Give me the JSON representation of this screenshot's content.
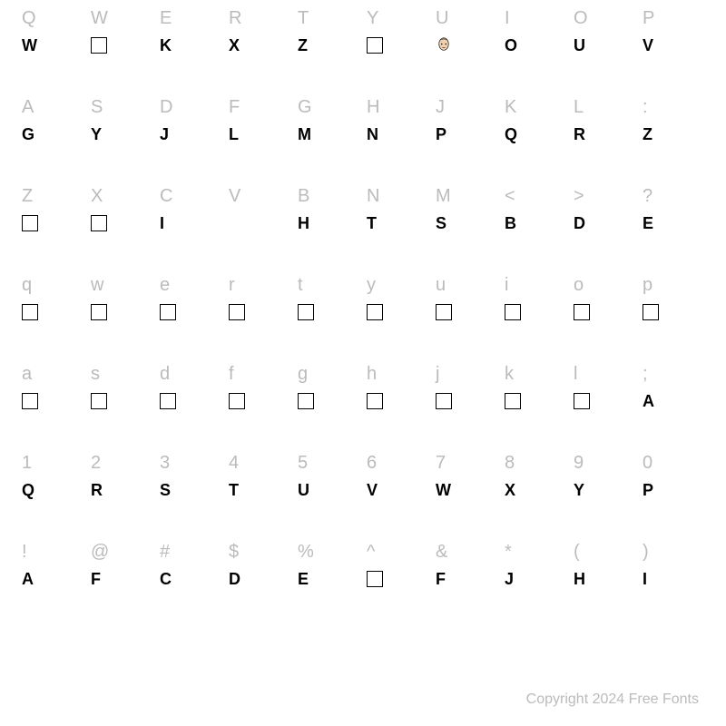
{
  "grid": {
    "background_color": "#ffffff",
    "key_label_color": "#bbbbbb",
    "glyph_color": "#000000",
    "key_label_fontsize": 20,
    "glyph_fontsize": 18,
    "columns": 10,
    "rows": 7
  },
  "rows": [
    {
      "keys": [
        "Q",
        "W",
        "E",
        "R",
        "T",
        "Y",
        "U",
        "I",
        "O",
        "P"
      ],
      "glyphs": [
        {
          "type": "text",
          "value": "W"
        },
        {
          "type": "box"
        },
        {
          "type": "text",
          "value": "K"
        },
        {
          "type": "text",
          "value": "X"
        },
        {
          "type": "text",
          "value": "Z"
        },
        {
          "type": "box"
        },
        {
          "type": "face"
        },
        {
          "type": "text",
          "value": "O"
        },
        {
          "type": "text",
          "value": "U"
        },
        {
          "type": "text",
          "value": "V"
        }
      ]
    },
    {
      "keys": [
        "A",
        "S",
        "D",
        "F",
        "G",
        "H",
        "J",
        "K",
        "L",
        ":"
      ],
      "glyphs": [
        {
          "type": "text",
          "value": "G"
        },
        {
          "type": "text",
          "value": "Y"
        },
        {
          "type": "text",
          "value": "J"
        },
        {
          "type": "text",
          "value": "L"
        },
        {
          "type": "text",
          "value": "M"
        },
        {
          "type": "text",
          "value": "N"
        },
        {
          "type": "text",
          "value": "P"
        },
        {
          "type": "text",
          "value": "Q"
        },
        {
          "type": "text",
          "value": "R"
        },
        {
          "type": "text",
          "value": "Z"
        }
      ]
    },
    {
      "keys": [
        "Z",
        "X",
        "C",
        "V",
        "B",
        "N",
        "M",
        "<",
        ">",
        "?"
      ],
      "glyphs": [
        {
          "type": "box"
        },
        {
          "type": "box"
        },
        {
          "type": "text",
          "value": "I"
        },
        {
          "type": "blank"
        },
        {
          "type": "text",
          "value": "H"
        },
        {
          "type": "text",
          "value": "T"
        },
        {
          "type": "text",
          "value": "S"
        },
        {
          "type": "text",
          "value": "B"
        },
        {
          "type": "text",
          "value": "D"
        },
        {
          "type": "text",
          "value": "E"
        }
      ]
    },
    {
      "keys": [
        "q",
        "w",
        "e",
        "r",
        "t",
        "y",
        "u",
        "i",
        "o",
        "p"
      ],
      "glyphs": [
        {
          "type": "box"
        },
        {
          "type": "box"
        },
        {
          "type": "box"
        },
        {
          "type": "box"
        },
        {
          "type": "box"
        },
        {
          "type": "box"
        },
        {
          "type": "box"
        },
        {
          "type": "box"
        },
        {
          "type": "box"
        },
        {
          "type": "box"
        }
      ]
    },
    {
      "keys": [
        "a",
        "s",
        "d",
        "f",
        "g",
        "h",
        "j",
        "k",
        "l",
        ";"
      ],
      "glyphs": [
        {
          "type": "box"
        },
        {
          "type": "box"
        },
        {
          "type": "box"
        },
        {
          "type": "box"
        },
        {
          "type": "box"
        },
        {
          "type": "box"
        },
        {
          "type": "box"
        },
        {
          "type": "box"
        },
        {
          "type": "box"
        },
        {
          "type": "text",
          "value": "A"
        }
      ]
    },
    {
      "keys": [
        "1",
        "2",
        "3",
        "4",
        "5",
        "6",
        "7",
        "8",
        "9",
        "0"
      ],
      "glyphs": [
        {
          "type": "text",
          "value": "Q"
        },
        {
          "type": "text",
          "value": "R"
        },
        {
          "type": "text",
          "value": "S"
        },
        {
          "type": "text",
          "value": "T"
        },
        {
          "type": "text",
          "value": "U"
        },
        {
          "type": "text",
          "value": "V"
        },
        {
          "type": "text",
          "value": "W"
        },
        {
          "type": "text",
          "value": "X"
        },
        {
          "type": "text",
          "value": "Y"
        },
        {
          "type": "text",
          "value": "P"
        }
      ]
    },
    {
      "keys": [
        "!",
        "@",
        "#",
        "$",
        "%",
        "^",
        "&",
        "*",
        "(",
        ")"
      ],
      "glyphs": [
        {
          "type": "text",
          "value": "A"
        },
        {
          "type": "text",
          "value": "F"
        },
        {
          "type": "text",
          "value": "C"
        },
        {
          "type": "text",
          "value": "D"
        },
        {
          "type": "text",
          "value": "E"
        },
        {
          "type": "box"
        },
        {
          "type": "text",
          "value": "F"
        },
        {
          "type": "text",
          "value": "J"
        },
        {
          "type": "text",
          "value": "H"
        },
        {
          "type": "text",
          "value": "I"
        }
      ]
    }
  ],
  "copyright": "Copyright 2024 Free Fonts"
}
